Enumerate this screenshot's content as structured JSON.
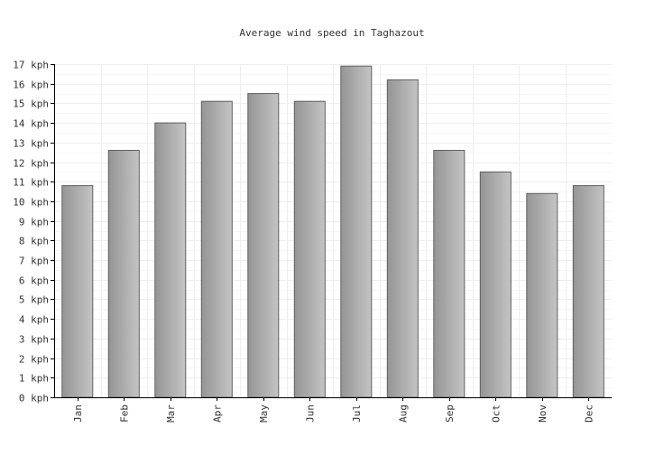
{
  "chart_data": {
    "type": "bar",
    "title": "Average wind speed in Taghazout",
    "xlabel": "",
    "ylabel": "",
    "unit": "kph",
    "categories": [
      "Jan",
      "Feb",
      "Mar",
      "Apr",
      "May",
      "Jun",
      "Jul",
      "Aug",
      "Sep",
      "Oct",
      "Nov",
      "Dec"
    ],
    "values": [
      10.8,
      12.6,
      14.0,
      15.1,
      15.5,
      15.1,
      16.9,
      16.2,
      12.6,
      11.5,
      10.4,
      10.8
    ],
    "ylim": [
      0,
      17
    ],
    "yticks": [
      "0 kph",
      "1 kph",
      "2 kph",
      "3 kph",
      "4 kph",
      "5 kph",
      "6 kph",
      "7 kph",
      "8 kph",
      "9 kph",
      "10 kph",
      "11 kph",
      "12 kph",
      "13 kph",
      "14 kph",
      "15 kph",
      "16 kph",
      "17 kph"
    ],
    "grid": true,
    "legend": "none",
    "colors": {
      "bar_light": "#c4c4c4",
      "bar_dark": "#959595",
      "bar_stroke": "#5f5f5f",
      "grid": "#eeeeee",
      "axis": "#000000"
    }
  }
}
